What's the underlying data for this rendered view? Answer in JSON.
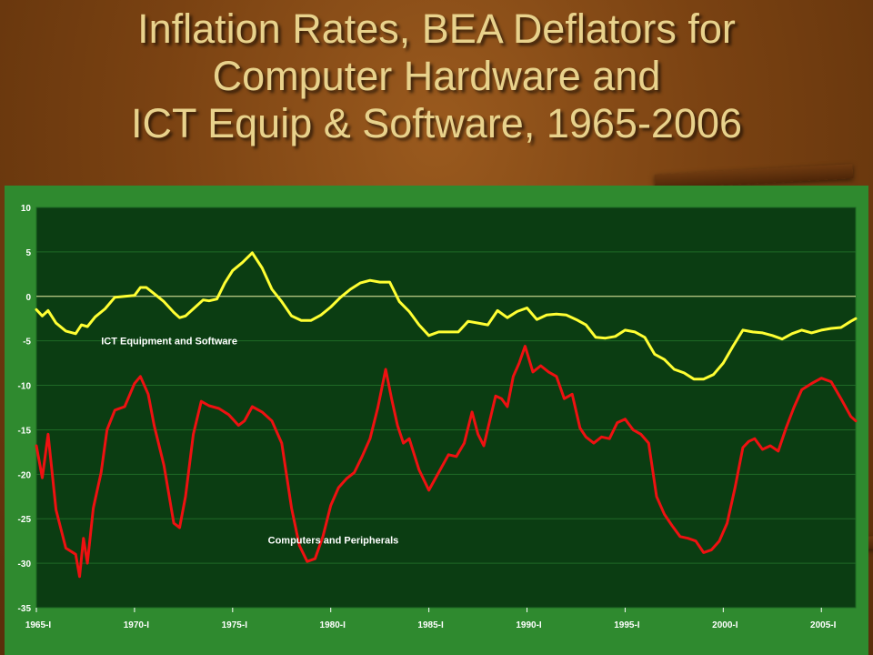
{
  "slide": {
    "title_lines": [
      "Inflation Rates, BEA Deflators for",
      "Computer Hardware and",
      "ICT Equip & Software, 1965-2006"
    ]
  },
  "colors": {
    "plot_background": "#0b3d12",
    "frame": "#2f8a2f",
    "ict_series": "#ffff33",
    "computers_series": "#ee1111",
    "zero_line": "#e8e8a0",
    "axis_text": "#ffffff"
  },
  "chart_data": {
    "type": "line",
    "title": "",
    "xlabel": "",
    "ylabel": "",
    "ylim": [
      -35,
      10
    ],
    "yticks": [
      10,
      5,
      0,
      -5,
      -10,
      -15,
      -20,
      -25,
      -30,
      -35
    ],
    "xlim": [
      1965,
      2006.75
    ],
    "x_tick_labels": [
      "1965-I",
      "1970-I",
      "1975-I",
      "1980-I",
      "1985-I",
      "1990-I",
      "1995-I",
      "2000-I",
      "2005-I"
    ],
    "x_tick_years": [
      1965,
      1970,
      1975,
      1980,
      1985,
      1990,
      1995,
      2000,
      2005
    ],
    "grid": "horizontal",
    "reference_line_y": 0,
    "series": [
      {
        "name": "ICT Equipment and Software",
        "label_at": [
          1968.3,
          -5
        ],
        "x": [
          1965.0,
          1965.3,
          1965.6,
          1966.0,
          1966.5,
          1967.0,
          1967.3,
          1967.6,
          1968.0,
          1968.5,
          1969.0,
          1969.5,
          1970.0,
          1970.3,
          1970.6,
          1971.0,
          1971.5,
          1972.0,
          1972.3,
          1972.6,
          1973.0,
          1973.5,
          1973.8,
          1974.2,
          1974.6,
          1975.0,
          1975.5,
          1976.0,
          1976.5,
          1977.0,
          1977.5,
          1978.0,
          1978.5,
          1979.0,
          1979.5,
          1980.0,
          1980.5,
          1981.0,
          1981.5,
          1982.0,
          1982.5,
          1983.0,
          1983.5,
          1984.0,
          1984.5,
          1985.0,
          1985.5,
          1986.0,
          1986.5,
          1987.0,
          1987.5,
          1988.0,
          1988.5,
          1989.0,
          1989.5,
          1990.0,
          1990.5,
          1991.0,
          1991.5,
          1992.0,
          1992.5,
          1993.0,
          1993.5,
          1994.0,
          1994.5,
          1995.0,
          1995.5,
          1996.0,
          1996.5,
          1997.0,
          1997.5,
          1998.0,
          1998.5,
          1999.0,
          1999.5,
          2000.0,
          2000.5,
          2001.0,
          2001.5,
          2002.0,
          2002.5,
          2003.0,
          2003.5,
          2004.0,
          2004.5,
          2005.0,
          2005.5,
          2006.0,
          2006.5,
          2006.75
        ],
        "values": [
          -1.5,
          -2.2,
          -1.6,
          -3.0,
          -3.9,
          -4.2,
          -3.2,
          -3.4,
          -2.3,
          -1.4,
          -0.1,
          0.0,
          0.1,
          1.0,
          1.0,
          0.3,
          -0.6,
          -1.8,
          -2.4,
          -2.2,
          -1.4,
          -0.4,
          -0.5,
          -0.3,
          1.5,
          2.9,
          3.8,
          4.9,
          3.2,
          0.8,
          -0.6,
          -2.2,
          -2.7,
          -2.7,
          -2.1,
          -1.2,
          -0.1,
          0.8,
          1.5,
          1.8,
          1.6,
          1.6,
          -0.6,
          -1.7,
          -3.2,
          -4.4,
          -4.0,
          -4.0,
          -4.0,
          -2.8,
          -3.0,
          -3.2,
          -1.6,
          -2.4,
          -1.7,
          -1.3,
          -2.6,
          -2.1,
          -2.0,
          -2.1,
          -2.6,
          -3.2,
          -4.6,
          -4.7,
          -4.5,
          -3.8,
          -4.0,
          -4.6,
          -6.5,
          -7.1,
          -8.2,
          -8.6,
          -9.3,
          -9.3,
          -8.8,
          -7.5,
          -5.6,
          -3.8,
          -4.0,
          -4.1,
          -4.4,
          -4.8,
          -4.2,
          -3.8,
          -4.1,
          -3.8,
          -3.6,
          -3.5,
          -2.8,
          -2.5
        ]
      },
      {
        "name": "Computers and Peripherals",
        "label_at": [
          1976.8,
          -27.4
        ],
        "x": [
          1965.0,
          1965.3,
          1965.6,
          1966.0,
          1966.5,
          1967.0,
          1967.2,
          1967.4,
          1967.6,
          1967.9,
          1968.3,
          1968.6,
          1969.0,
          1969.5,
          1970.0,
          1970.3,
          1970.7,
          1971.0,
          1971.5,
          1972.0,
          1972.3,
          1972.6,
          1973.0,
          1973.4,
          1973.8,
          1974.3,
          1974.8,
          1975.3,
          1975.6,
          1976.0,
          1976.5,
          1977.0,
          1977.5,
          1978.0,
          1978.4,
          1978.8,
          1979.2,
          1979.6,
          1980.0,
          1980.4,
          1980.8,
          1981.2,
          1981.6,
          1982.0,
          1982.4,
          1982.8,
          1983.1,
          1983.4,
          1983.7,
          1984.0,
          1984.5,
          1985.0,
          1985.5,
          1986.0,
          1986.4,
          1986.8,
          1987.2,
          1987.5,
          1987.8,
          1988.1,
          1988.4,
          1988.7,
          1989.0,
          1989.3,
          1989.6,
          1989.9,
          1990.3,
          1990.7,
          1991.1,
          1991.5,
          1991.9,
          1992.3,
          1992.7,
          1993.0,
          1993.4,
          1993.8,
          1994.2,
          1994.6,
          1995.0,
          1995.4,
          1995.8,
          1996.2,
          1996.6,
          1997.0,
          1997.4,
          1997.8,
          1998.2,
          1998.6,
          1999.0,
          1999.4,
          1999.8,
          2000.2,
          2000.6,
          2001.0,
          2001.3,
          2001.6,
          2002.0,
          2002.4,
          2002.8,
          2003.2,
          2003.6,
          2004.0,
          2004.5,
          2005.0,
          2005.5,
          2006.0,
          2006.5,
          2006.75
        ],
        "values": [
          -16.8,
          -20.4,
          -15.5,
          -24.0,
          -28.3,
          -29.0,
          -31.5,
          -27.2,
          -30.0,
          -23.8,
          -19.8,
          -15.0,
          -12.8,
          -12.4,
          -9.8,
          -9.0,
          -11.0,
          -14.5,
          -19.0,
          -25.5,
          -26.0,
          -22.5,
          -15.5,
          -11.8,
          -12.3,
          -12.6,
          -13.3,
          -14.5,
          -14.0,
          -12.4,
          -13.0,
          -14.0,
          -16.5,
          -23.8,
          -28.0,
          -29.8,
          -29.5,
          -27.0,
          -23.5,
          -21.5,
          -20.5,
          -19.8,
          -18.0,
          -16.0,
          -12.5,
          -8.2,
          -11.5,
          -14.5,
          -16.5,
          -16.0,
          -19.5,
          -21.8,
          -19.8,
          -17.8,
          -18.0,
          -16.5,
          -13.0,
          -15.5,
          -16.8,
          -14.0,
          -11.2,
          -11.5,
          -12.4,
          -9.0,
          -7.5,
          -5.6,
          -8.5,
          -7.8,
          -8.5,
          -9.0,
          -11.5,
          -11.0,
          -14.8,
          -15.8,
          -16.5,
          -15.8,
          -16.0,
          -14.2,
          -13.8,
          -15.0,
          -15.5,
          -16.5,
          -22.5,
          -24.5,
          -25.8,
          -27.0,
          -27.2,
          -27.5,
          -28.8,
          -28.5,
          -27.5,
          -25.5,
          -21.5,
          -17.0,
          -16.3,
          -16.0,
          -17.2,
          -16.8,
          -17.4,
          -14.8,
          -12.5,
          -10.5,
          -9.8,
          -9.2,
          -9.6,
          -11.5,
          -13.5,
          -14.0
        ]
      }
    ]
  }
}
